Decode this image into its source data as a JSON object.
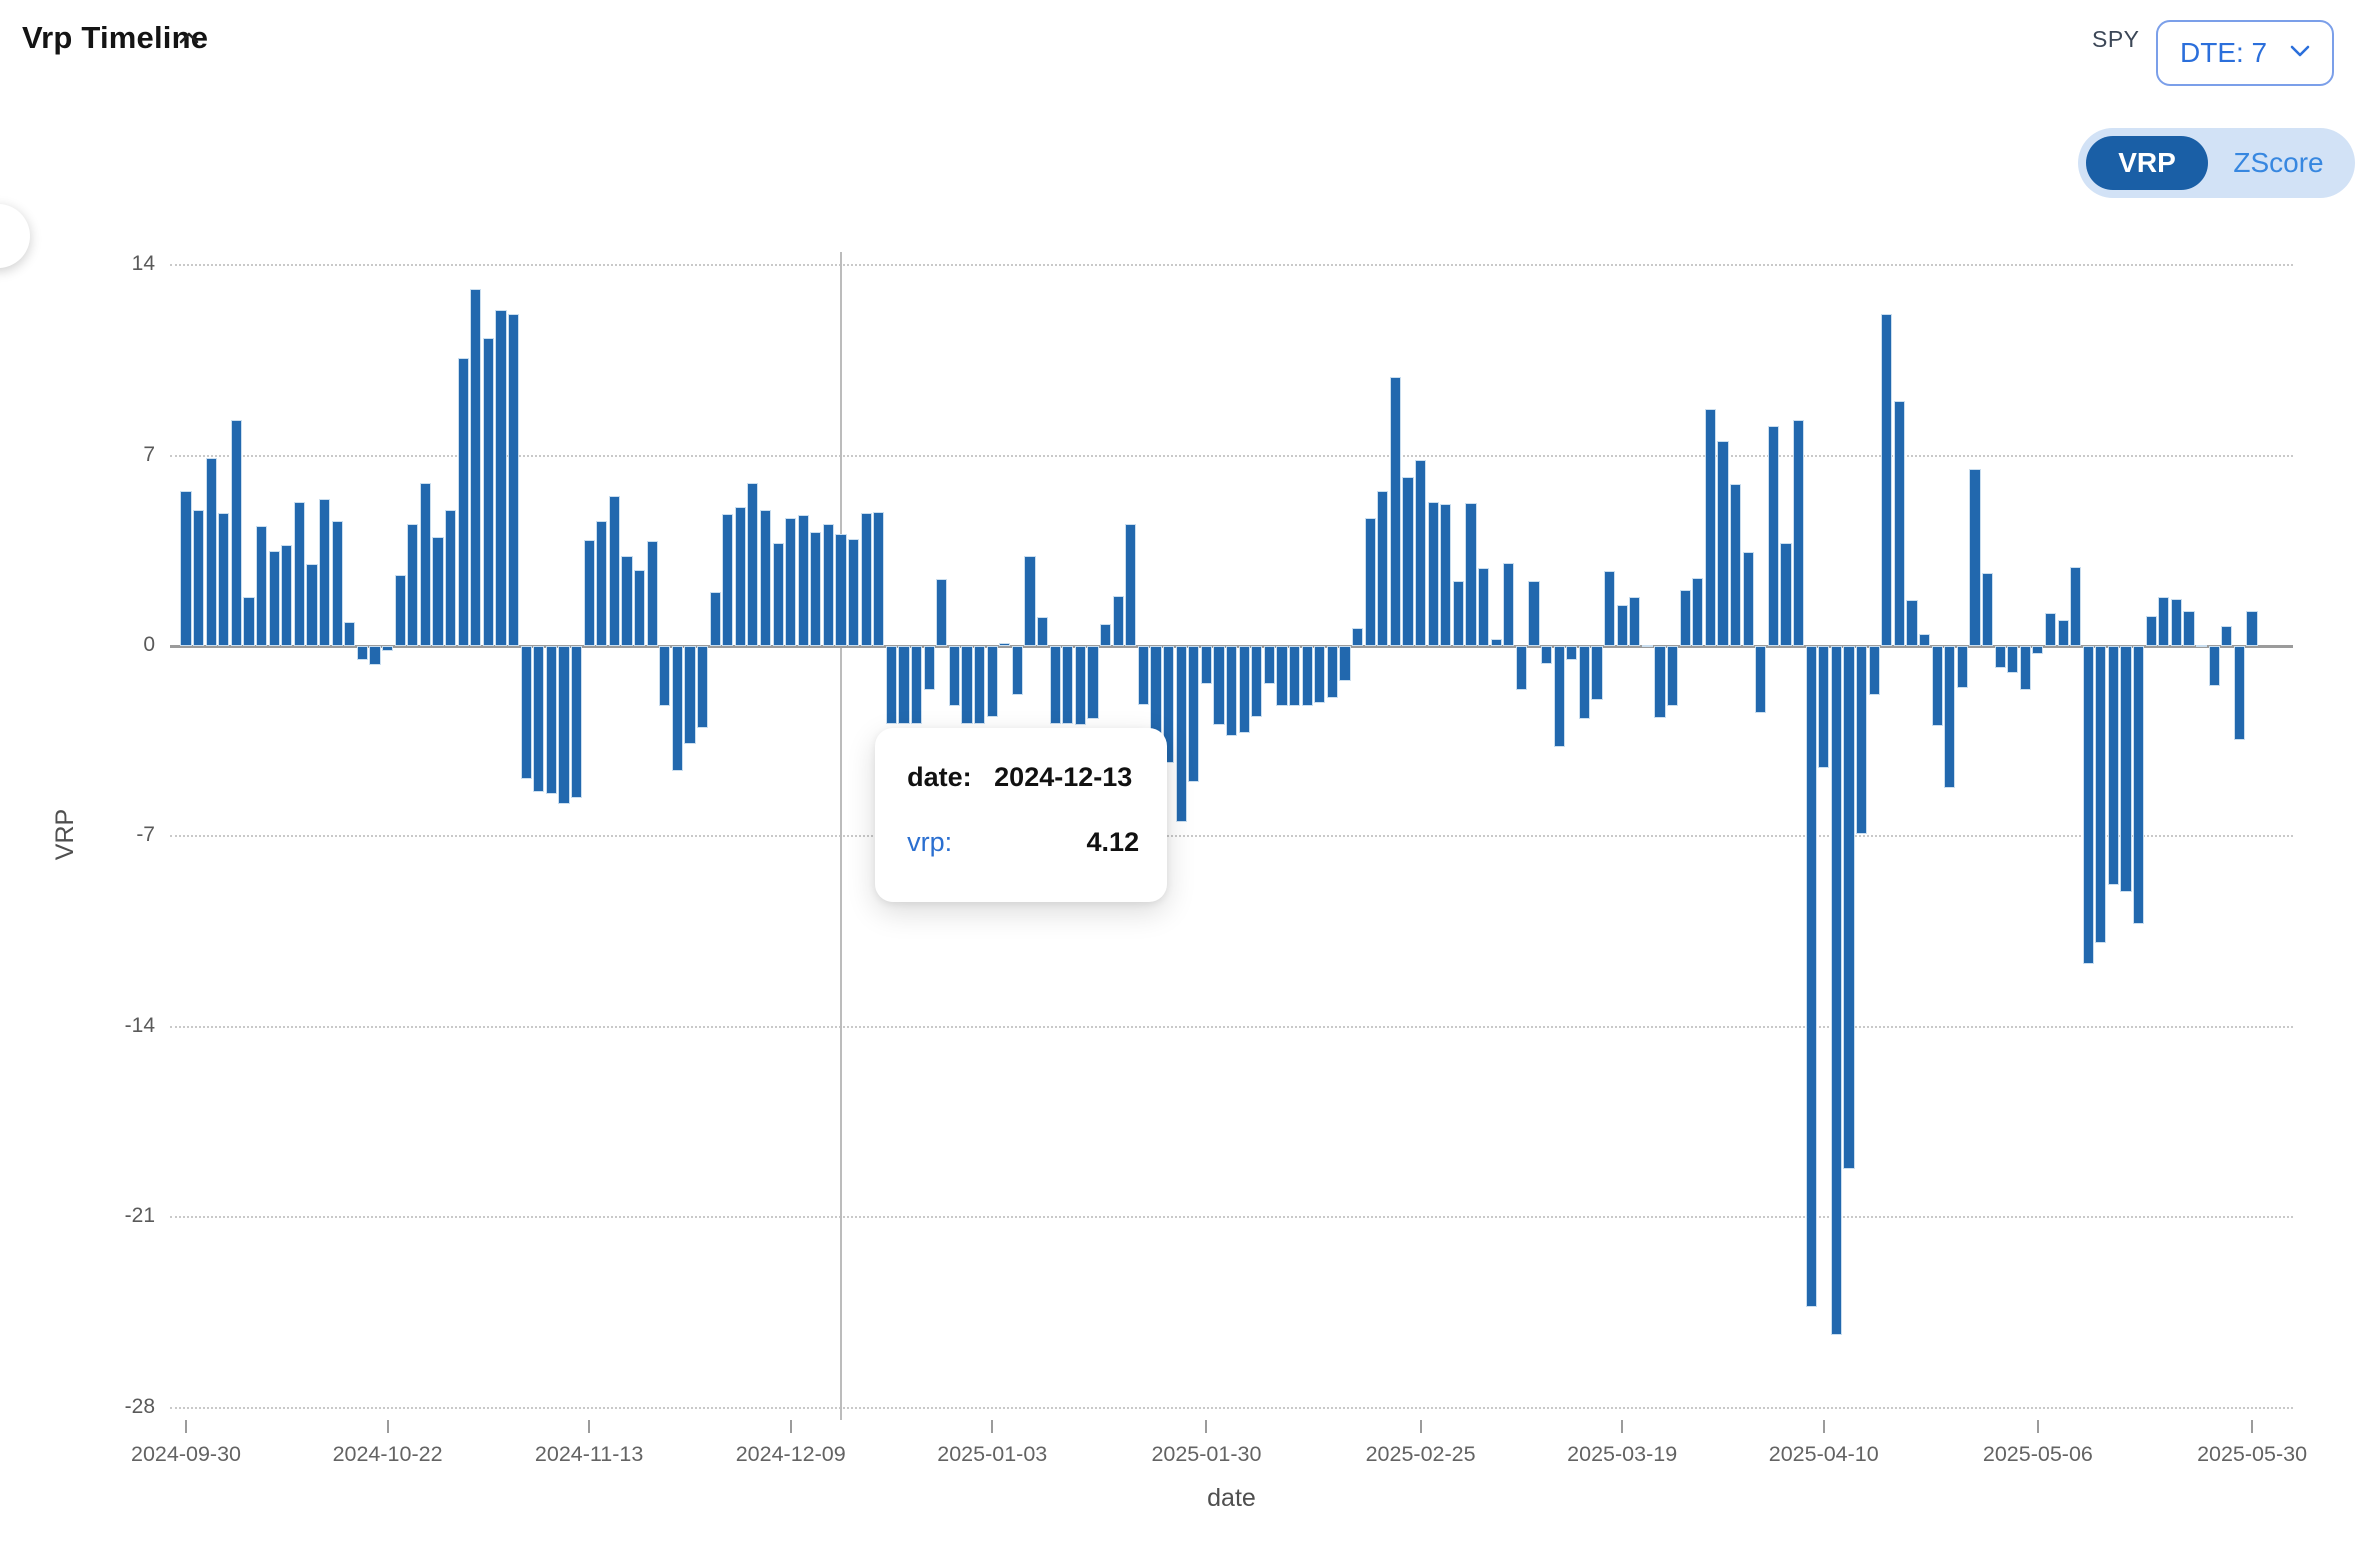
{
  "header": {
    "title": "Vrp Timeline",
    "ticker": "SPY",
    "dte_label": "DTE: 7",
    "toggle": {
      "options": [
        "VRP",
        "ZScore"
      ],
      "active": "VRP"
    }
  },
  "tooltip": {
    "date_label": "date:",
    "date_value": "2024-12-13",
    "series_label": "vrp:",
    "series_value": "4.12"
  },
  "chart_data": {
    "type": "bar",
    "title": "Vrp Timeline",
    "xlabel": "date",
    "ylabel": "VRP",
    "ylim": [
      -28.7,
      14.6
    ],
    "yticks": [
      14,
      7,
      0,
      -7,
      -14,
      -21,
      -28
    ],
    "grid": "horizontal-dotted",
    "legend": "none",
    "bar_color": "#2268ae",
    "xtick_labels": [
      "2024-09-30",
      "2024-10-22",
      "2024-11-13",
      "2024-12-09",
      "2025-01-03",
      "2025-01-30",
      "2025-02-25",
      "2025-03-19",
      "2025-04-10",
      "2025-05-06",
      "2025-05-30"
    ],
    "hover": {
      "date": "2024-12-13",
      "value": 4.12
    },
    "x": [
      "2024-09-30",
      "2024-10-01",
      "2024-10-02",
      "2024-10-03",
      "2024-10-04",
      "2024-10-07",
      "2024-10-08",
      "2024-10-09",
      "2024-10-10",
      "2024-10-11",
      "2024-10-14",
      "2024-10-15",
      "2024-10-16",
      "2024-10-17",
      "2024-10-18",
      "2024-10-21",
      "2024-10-22",
      "2024-10-23",
      "2024-10-24",
      "2024-10-25",
      "2024-10-28",
      "2024-10-29",
      "2024-10-30",
      "2024-10-31",
      "2024-11-01",
      "2024-11-04",
      "2024-11-05",
      "2024-11-06",
      "2024-11-07",
      "2024-11-08",
      "2024-11-11",
      "2024-11-12",
      "2024-11-13",
      "2024-11-14",
      "2024-11-15",
      "2024-11-18",
      "2024-11-19",
      "2024-11-20",
      "2024-11-21",
      "2024-11-22",
      "2024-11-25",
      "2024-11-26",
      "2024-11-27",
      "2024-12-02",
      "2024-12-03",
      "2024-12-04",
      "2024-12-05",
      "2024-12-06",
      "2024-12-09",
      "2024-12-10",
      "2024-12-11",
      "2024-12-12",
      "2024-12-13",
      "2024-12-16",
      "2024-12-17",
      "2024-12-18",
      "2024-12-19",
      "2024-12-20",
      "2024-12-23",
      "2024-12-26",
      "2024-12-27",
      "2024-12-30",
      "2024-12-31",
      "2025-01-02",
      "2025-01-03",
      "2025-01-06",
      "2025-01-07",
      "2025-01-08",
      "2025-01-10",
      "2025-01-13",
      "2025-01-14",
      "2025-01-15",
      "2025-01-16",
      "2025-01-17",
      "2025-01-21",
      "2025-01-22",
      "2025-01-23",
      "2025-01-24",
      "2025-01-27",
      "2025-01-28",
      "2025-01-29",
      "2025-01-30",
      "2025-01-31",
      "2025-02-03",
      "2025-02-04",
      "2025-02-05",
      "2025-02-06",
      "2025-02-07",
      "2025-02-10",
      "2025-02-11",
      "2025-02-12",
      "2025-02-13",
      "2025-02-14",
      "2025-02-18",
      "2025-02-19",
      "2025-02-20",
      "2025-02-21",
      "2025-02-24",
      "2025-02-25",
      "2025-02-26",
      "2025-02-27",
      "2025-02-28",
      "2025-03-03",
      "2025-03-04",
      "2025-03-05",
      "2025-03-06",
      "2025-03-07",
      "2025-03-10",
      "2025-03-11",
      "2025-03-12",
      "2025-03-13",
      "2025-03-14",
      "2025-03-17",
      "2025-03-18",
      "2025-03-19",
      "2025-03-20",
      "2025-03-21",
      "2025-03-24",
      "2025-03-25",
      "2025-03-26",
      "2025-03-27",
      "2025-03-28",
      "2025-03-31",
      "2025-04-01",
      "2025-04-02",
      "2025-04-03",
      "2025-04-04",
      "2025-04-07",
      "2025-04-08",
      "2025-04-09",
      "2025-04-10",
      "2025-04-11",
      "2025-04-14",
      "2025-04-15",
      "2025-04-16",
      "2025-04-17",
      "2025-04-21",
      "2025-04-22",
      "2025-04-23",
      "2025-04-24",
      "2025-04-25",
      "2025-04-28",
      "2025-04-29",
      "2025-04-30",
      "2025-05-01",
      "2025-05-02",
      "2025-05-05",
      "2025-05-06",
      "2025-05-07",
      "2025-05-08",
      "2025-05-09",
      "2025-05-12",
      "2025-05-13",
      "2025-05-14",
      "2025-05-15",
      "2025-05-16",
      "2025-05-19",
      "2025-05-20",
      "2025-05-21",
      "2025-05-22",
      "2025-05-23",
      "2025-05-27",
      "2025-05-28",
      "2025-05-29",
      "2025-05-30"
    ],
    "values": [
      5.7,
      5.0,
      6.9,
      4.9,
      8.3,
      1.8,
      4.4,
      3.5,
      3.7,
      5.3,
      3.0,
      5.4,
      4.6,
      0.9,
      -0.5,
      -0.7,
      -0.2,
      2.6,
      4.5,
      6.0,
      4.0,
      5.0,
      10.6,
      13.1,
      11.3,
      12.35,
      12.2,
      -4.9,
      -5.35,
      -5.45,
      -5.8,
      -5.6,
      3.9,
      4.6,
      5.5,
      3.3,
      2.8,
      3.85,
      -2.2,
      -4.6,
      -3.6,
      -3.0,
      2.0,
      4.85,
      5.1,
      6.0,
      5.0,
      3.8,
      4.7,
      4.8,
      4.2,
      4.5,
      4.12,
      3.95,
      4.87,
      4.94,
      -2.85,
      -2.85,
      -2.85,
      -1.6,
      2.45,
      -2.2,
      -2.85,
      -2.85,
      -2.6,
      0.1,
      -1.8,
      3.3,
      1.05,
      -2.85,
      -2.85,
      -2.9,
      -2.7,
      0.8,
      1.85,
      4.5,
      -2.15,
      -3.6,
      -4.3,
      -6.45,
      -5.0,
      -1.4,
      -2.9,
      -3.3,
      -3.2,
      -2.6,
      -1.4,
      -2.2,
      -2.2,
      -2.2,
      -2.1,
      -1.9,
      -1.3,
      0.65,
      4.7,
      5.7,
      9.9,
      6.2,
      6.85,
      5.3,
      5.2,
      2.4,
      5.25,
      2.85,
      0.25,
      3.05,
      -1.6,
      2.4,
      -0.65,
      -3.7,
      -0.5,
      -2.7,
      -2.0,
      2.75,
      1.5,
      1.8,
      0.05,
      -2.65,
      -2.2,
      2.05,
      2.5,
      8.7,
      7.55,
      5.95,
      3.45,
      -2.45,
      8.1,
      3.8,
      8.3,
      -24.3,
      -4.5,
      -25.3,
      -19.2,
      -6.9,
      -1.8,
      12.2,
      9.0,
      1.7,
      0.45,
      -2.95,
      -5.2,
      -1.55,
      6.5,
      2.7,
      -0.8,
      -1.0,
      -1.6,
      -0.3,
      1.2,
      0.95,
      2.9,
      -11.7,
      -10.9,
      -8.8,
      -9.05,
      -10.2,
      1.1,
      1.8,
      1.72,
      1.3,
      0.05,
      -1.46,
      0.72,
      -3.45,
      1.28
    ]
  }
}
